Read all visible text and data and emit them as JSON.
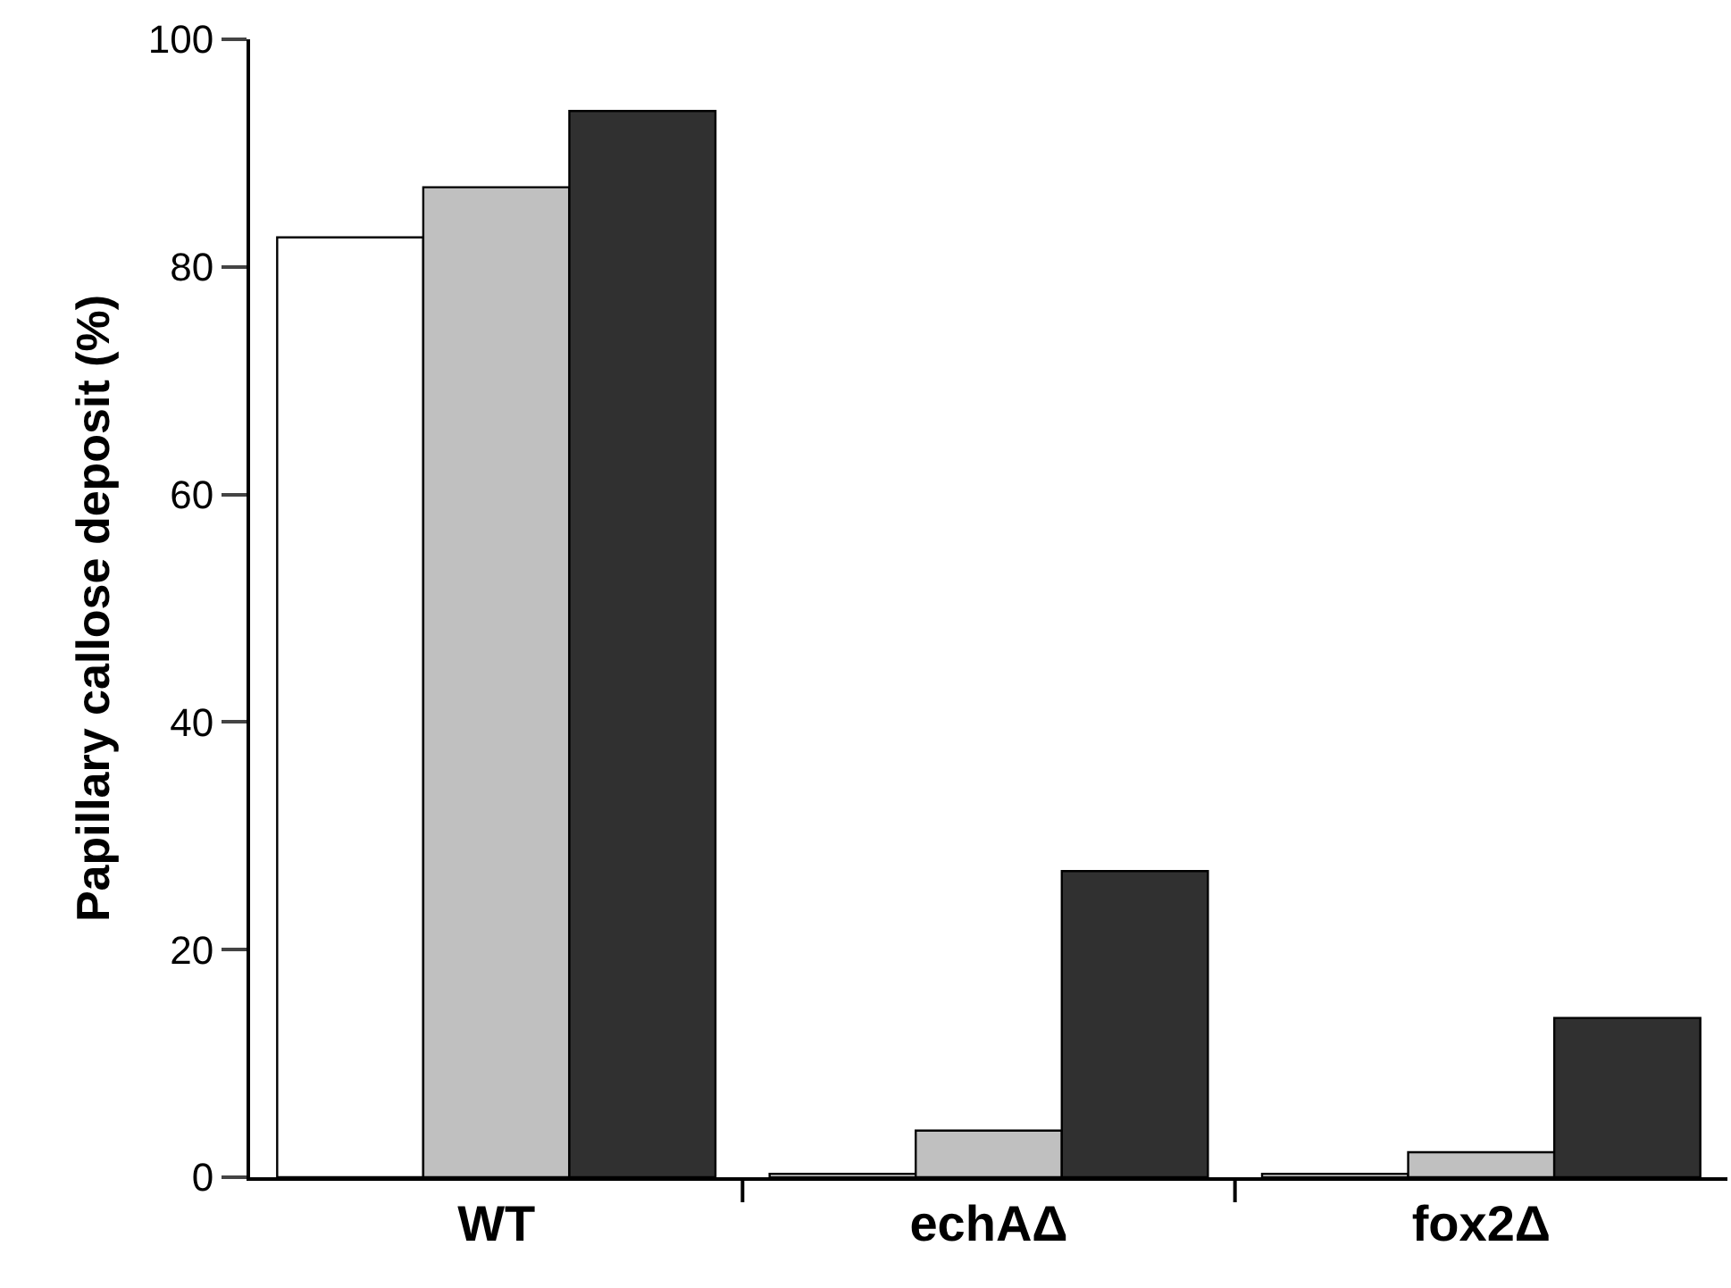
{
  "chart_data": {
    "type": "bar",
    "ylabel": "Papillary callose deposit (%)",
    "categories": [
      "WT",
      "echAΔ",
      "fox2Δ"
    ],
    "series": [
      {
        "color": "#ffffff",
        "values": [
          82.6,
          0.3,
          0.3
        ]
      },
      {
        "color": "#c0c0c0",
        "values": [
          87.0,
          4.1,
          2.2
        ]
      },
      {
        "color": "#303030",
        "values": [
          93.7,
          26.9,
          14.0
        ]
      }
    ],
    "ylim": [
      0,
      100
    ],
    "yticks": [
      0,
      20,
      40,
      60,
      80,
      100
    ]
  }
}
